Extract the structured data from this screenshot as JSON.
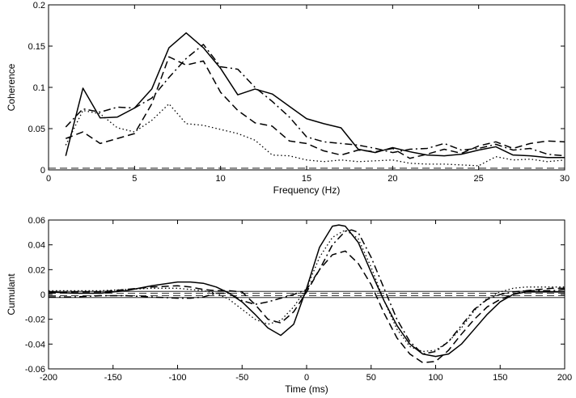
{
  "chart_data": [
    {
      "type": "line",
      "xlabel": "Frequency (Hz)",
      "ylabel": "Coherence",
      "xlim": [
        0,
        30
      ],
      "ylim": [
        0,
        0.2
      ],
      "xticks": [
        0,
        5,
        10,
        15,
        20,
        25,
        30
      ],
      "yticks": [
        0,
        0.05,
        0.1,
        0.15,
        0.2
      ],
      "xtick_labels": [
        "0",
        "5",
        "10",
        "15",
        "20",
        "25",
        "30"
      ],
      "ytick_labels": [
        "0",
        "0.05",
        "0.1",
        "0.15",
        "0.2"
      ],
      "grid": false,
      "reference_lines": [
        {
          "style": "dashed",
          "y": 0.002
        }
      ],
      "series": [
        {
          "style": "solid",
          "x": [
            1,
            2,
            3,
            4,
            5,
            6,
            7,
            8,
            9,
            10,
            11,
            12,
            13,
            14,
            15,
            16,
            17,
            18,
            19,
            20,
            21,
            22,
            23,
            24,
            25,
            26,
            27,
            28,
            29,
            30
          ],
          "values": [
            0.017,
            0.099,
            0.063,
            0.064,
            0.075,
            0.098,
            0.148,
            0.166,
            0.148,
            0.123,
            0.091,
            0.098,
            0.092,
            0.077,
            0.062,
            0.056,
            0.051,
            0.025,
            0.021,
            0.027,
            0.022,
            0.018,
            0.017,
            0.019,
            0.024,
            0.028,
            0.018,
            0.017,
            0.015,
            0.015
          ]
        },
        {
          "style": "dashdot",
          "x": [
            1,
            2,
            3,
            4,
            5,
            6,
            7,
            8,
            9,
            10,
            11,
            12,
            13,
            14,
            15,
            16,
            17,
            18,
            19,
            20,
            21,
            22,
            23,
            24,
            25,
            26,
            27,
            28,
            29,
            30
          ],
          "values": [
            0.052,
            0.074,
            0.07,
            0.076,
            0.075,
            0.087,
            0.112,
            0.135,
            0.152,
            0.125,
            0.122,
            0.1,
            0.083,
            0.064,
            0.04,
            0.034,
            0.032,
            0.03,
            0.026,
            0.021,
            0.025,
            0.026,
            0.032,
            0.024,
            0.026,
            0.031,
            0.024,
            0.026,
            0.019,
            0.017
          ]
        },
        {
          "style": "dashed",
          "x": [
            1,
            2,
            3,
            4,
            5,
            6,
            7,
            8,
            9,
            10,
            11,
            12,
            13,
            14,
            15,
            16,
            17,
            18,
            19,
            20,
            21,
            22,
            23,
            24,
            25,
            26,
            27,
            28,
            29,
            30
          ],
          "values": [
            0.038,
            0.046,
            0.032,
            0.038,
            0.044,
            0.08,
            0.137,
            0.127,
            0.132,
            0.094,
            0.072,
            0.057,
            0.053,
            0.035,
            0.032,
            0.023,
            0.018,
            0.024,
            0.022,
            0.026,
            0.014,
            0.019,
            0.025,
            0.02,
            0.029,
            0.034,
            0.026,
            0.032,
            0.035,
            0.034
          ]
        },
        {
          "style": "dotted",
          "x": [
            1,
            2,
            3,
            4,
            5,
            6,
            7,
            8,
            9,
            10,
            11,
            12,
            13,
            14,
            15,
            16,
            17,
            18,
            19,
            20,
            21,
            22,
            23,
            24,
            25,
            26,
            27,
            28,
            29,
            30
          ],
          "values": [
            0.03,
            0.072,
            0.068,
            0.051,
            0.046,
            0.06,
            0.08,
            0.056,
            0.054,
            0.049,
            0.044,
            0.036,
            0.018,
            0.017,
            0.012,
            0.01,
            0.012,
            0.01,
            0.011,
            0.012,
            0.008,
            0.007,
            0.007,
            0.006,
            0.005,
            0.016,
            0.012,
            0.013,
            0.01,
            0.012
          ]
        }
      ]
    },
    {
      "type": "line",
      "xlabel": "Time (ms)",
      "ylabel": "Cumulant",
      "xlim": [
        -200,
        200
      ],
      "ylim": [
        -0.06,
        0.06
      ],
      "xticks": [
        -200,
        -150,
        -100,
        -50,
        0,
        50,
        100,
        150,
        200
      ],
      "yticks": [
        -0.06,
        -0.04,
        -0.02,
        0,
        0.02,
        0.04,
        0.06
      ],
      "xtick_labels": [
        "-200",
        "-150",
        "-100",
        "-50",
        "0",
        "50",
        "100",
        "150",
        "200"
      ],
      "ytick_labels": [
        "-0.06",
        "-0.04",
        "-0.02",
        "0",
        "0.02",
        "0.04",
        "0.06"
      ],
      "grid": false,
      "reference_lines": [
        {
          "style": "solid",
          "y": 0.0025
        },
        {
          "style": "solid",
          "y": -0.0025
        },
        {
          "style": "dashed",
          "y": 0.001
        },
        {
          "style": "dashed",
          "y": -0.001
        }
      ],
      "series": [
        {
          "style": "solid",
          "x": [
            -200,
            -180,
            -160,
            -140,
            -120,
            -100,
            -90,
            -80,
            -70,
            -60,
            -50,
            -40,
            -30,
            -20,
            -10,
            0,
            10,
            20,
            25,
            30,
            40,
            50,
            60,
            70,
            80,
            90,
            100,
            110,
            120,
            130,
            140,
            150,
            160,
            170,
            180,
            190,
            200
          ],
          "values": [
            0.002,
            0.001,
            0.001,
            0.003,
            0.007,
            0.01,
            0.01,
            0.009,
            0.006,
            0.001,
            -0.006,
            -0.016,
            -0.027,
            -0.033,
            -0.024,
            0.005,
            0.038,
            0.055,
            0.056,
            0.055,
            0.042,
            0.018,
            -0.005,
            -0.025,
            -0.04,
            -0.048,
            -0.05,
            -0.048,
            -0.04,
            -0.028,
            -0.016,
            -0.006,
            0.0,
            0.002,
            0.002,
            0.002,
            0.002
          ]
        },
        {
          "style": "dashdot",
          "x": [
            -200,
            -180,
            -160,
            -140,
            -120,
            -100,
            -90,
            -80,
            -70,
            -60,
            -50,
            -40,
            -30,
            -20,
            -10,
            0,
            10,
            20,
            30,
            35,
            40,
            50,
            60,
            70,
            80,
            90,
            100,
            110,
            120,
            130,
            140,
            150,
            160,
            170,
            180,
            190,
            200
          ],
          "values": [
            -0.002,
            -0.002,
            -0.001,
            -0.001,
            -0.002,
            -0.003,
            -0.003,
            -0.002,
            0.001,
            0.001,
            -0.005,
            -0.008,
            -0.006,
            -0.003,
            0.0,
            0.004,
            0.02,
            0.04,
            0.051,
            0.052,
            0.05,
            0.03,
            0.005,
            -0.02,
            -0.038,
            -0.048,
            -0.046,
            -0.038,
            -0.025,
            -0.012,
            -0.004,
            0.0,
            0.002,
            0.003,
            0.003,
            0.003,
            0.004
          ]
        },
        {
          "style": "dashed",
          "x": [
            -200,
            -180,
            -160,
            -140,
            -120,
            -100,
            -90,
            -80,
            -70,
            -60,
            -50,
            -40,
            -30,
            -20,
            -10,
            0,
            10,
            20,
            30,
            40,
            50,
            60,
            70,
            80,
            90,
            100,
            110,
            120,
            130,
            140,
            150,
            160,
            170,
            180,
            190,
            200
          ],
          "values": [
            0.001,
            0.002,
            0.002,
            0.004,
            0.006,
            0.007,
            0.006,
            0.004,
            0.003,
            0.003,
            0.002,
            -0.008,
            -0.02,
            -0.023,
            -0.014,
            0.002,
            0.02,
            0.032,
            0.035,
            0.025,
            0.008,
            -0.015,
            -0.035,
            -0.048,
            -0.055,
            -0.054,
            -0.045,
            -0.032,
            -0.02,
            -0.01,
            -0.004,
            0.0,
            0.003,
            0.004,
            0.005,
            0.005
          ]
        },
        {
          "style": "dotted",
          "x": [
            -200,
            -180,
            -160,
            -140,
            -120,
            -100,
            -90,
            -80,
            -70,
            -60,
            -50,
            -40,
            -30,
            -20,
            -10,
            0,
            10,
            20,
            30,
            40,
            50,
            60,
            70,
            80,
            90,
            100,
            110,
            120,
            130,
            140,
            150,
            160,
            170,
            180,
            190,
            200
          ],
          "values": [
            0.003,
            0.003,
            0.003,
            0.004,
            0.005,
            0.005,
            0.004,
            0.003,
            0.001,
            -0.004,
            -0.012,
            -0.02,
            -0.024,
            -0.021,
            -0.01,
            0.005,
            0.03,
            0.046,
            0.052,
            0.045,
            0.022,
            -0.005,
            -0.028,
            -0.042,
            -0.046,
            -0.045,
            -0.038,
            -0.027,
            -0.013,
            -0.003,
            0.002,
            0.005,
            0.006,
            0.006,
            0.006,
            0.006
          ]
        }
      ]
    }
  ]
}
